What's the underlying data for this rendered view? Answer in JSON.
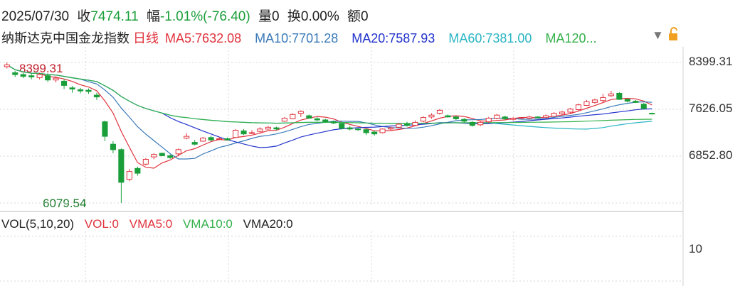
{
  "header": {
    "date": "2025/07/30",
    "close_label": "收",
    "close_value": "7474.11",
    "change_label": "幅",
    "change_value": "-1.01%(-76.40)",
    "volume_label": "量",
    "volume_value": "0",
    "turnover_label": "换",
    "turnover_value": "0.00%",
    "amount_label": "额",
    "amount_value": "0"
  },
  "ma_line": {
    "index_name": "纳斯达克中国金龙指数",
    "period": "日线",
    "ma5": "MA5:7632.08",
    "ma10": "MA10:7701.28",
    "ma20": "MA20:7587.93",
    "ma60": "MA60:7381.00",
    "ma120": "MA120..."
  },
  "vol_line": {
    "title": "VOL(5,10,20)",
    "vol": "VOL:0",
    "vma5": "VMA5:0",
    "vma10": "VMA10:0",
    "vma20": "VMA20:0"
  },
  "icons": {
    "dropdown": "triangle-down-icon",
    "lock": "unlock-icon"
  },
  "colors": {
    "up": "#e0323c",
    "down": "#1a9e3a",
    "ma5": "#e0323c",
    "ma10": "#3a7ab8",
    "ma20": "#2233cc",
    "ma60": "#2bb5c4",
    "ma120": "#34b04a",
    "grid": "#d7d7d7"
  },
  "chart_data": {
    "type": "candlestick",
    "y_ticks": [
      "8399.31",
      "7626.05",
      "6852.80"
    ],
    "ylim": [
      6079.54,
      8399.31
    ],
    "annotations": {
      "high_label": "8399.31",
      "low_label": "6079.54"
    },
    "volume_tick": "10",
    "candles": [
      [
        8330,
        8360,
        8300,
        8399.31
      ],
      [
        8230,
        8200,
        8160,
        8260
      ],
      [
        8200,
        8170,
        8140,
        8230
      ],
      [
        8180,
        8160,
        8120,
        8210
      ],
      [
        8150,
        8200,
        8120,
        8230
      ],
      [
        8180,
        8110,
        8080,
        8220
      ],
      [
        8110,
        8140,
        8070,
        8170
      ],
      [
        8090,
        8020,
        7960,
        8130
      ],
      [
        7980,
        7960,
        7900,
        8010
      ],
      [
        7950,
        7930,
        7890,
        7980
      ],
      [
        7940,
        7920,
        7880,
        7970
      ],
      [
        7860,
        7830,
        7780,
        7900
      ],
      [
        7420,
        7180,
        7100,
        7440
      ],
      [
        7050,
        6960,
        6900,
        7100
      ],
      [
        6960,
        6420,
        6079.54,
        6980
      ],
      [
        6470,
        6600,
        6440,
        6640
      ],
      [
        6650,
        6570,
        6530,
        6680
      ],
      [
        6720,
        6800,
        6700,
        6820
      ],
      [
        6840,
        6880,
        6800,
        6900
      ],
      [
        6900,
        6860,
        6850,
        6910
      ],
      [
        6860,
        6830,
        6810,
        6880
      ],
      [
        6890,
        6960,
        6850,
        6980
      ],
      [
        7150,
        7180,
        7130,
        7230
      ],
      [
        7080,
        7050,
        7030,
        7120
      ],
      [
        7100,
        7150,
        7090,
        7170
      ],
      [
        7160,
        7120,
        7100,
        7190
      ],
      [
        7130,
        7140,
        7120,
        7170
      ],
      [
        7140,
        7120,
        7110,
        7160
      ],
      [
        7160,
        7280,
        7150,
        7300
      ],
      [
        7270,
        7220,
        7200,
        7300
      ],
      [
        7230,
        7240,
        7220,
        7280
      ],
      [
        7260,
        7300,
        7240,
        7330
      ],
      [
        7300,
        7330,
        7290,
        7350
      ],
      [
        7320,
        7300,
        7280,
        7340
      ],
      [
        7430,
        7480,
        7420,
        7500
      ],
      [
        7470,
        7540,
        7460,
        7560
      ],
      [
        7560,
        7590,
        7500,
        7610
      ],
      [
        7520,
        7480,
        7470,
        7540
      ],
      [
        7470,
        7450,
        7430,
        7500
      ],
      [
        7450,
        7420,
        7400,
        7470
      ],
      [
        7420,
        7400,
        7380,
        7440
      ],
      [
        7390,
        7310,
        7290,
        7400
      ],
      [
        7320,
        7300,
        7280,
        7350
      ],
      [
        7300,
        7290,
        7270,
        7320
      ],
      [
        7290,
        7240,
        7200,
        7310
      ],
      [
        7250,
        7220,
        7190,
        7270
      ],
      [
        7240,
        7300,
        7230,
        7310
      ],
      [
        7300,
        7320,
        7280,
        7340
      ],
      [
        7330,
        7380,
        7320,
        7400
      ],
      [
        7380,
        7360,
        7340,
        7420
      ],
      [
        7360,
        7410,
        7350,
        7440
      ],
      [
        7430,
        7490,
        7410,
        7510
      ],
      [
        7500,
        7530,
        7470,
        7560
      ],
      [
        7560,
        7610,
        7540,
        7630
      ],
      [
        7520,
        7500,
        7490,
        7540
      ],
      [
        7500,
        7470,
        7450,
        7520
      ],
      [
        7460,
        7430,
        7410,
        7480
      ],
      [
        7410,
        7360,
        7340,
        7430
      ],
      [
        7370,
        7410,
        7350,
        7430
      ],
      [
        7420,
        7480,
        7400,
        7500
      ],
      [
        7480,
        7530,
        7460,
        7550
      ],
      [
        7500,
        7470,
        7450,
        7520
      ],
      [
        7460,
        7480,
        7440,
        7500
      ],
      [
        7480,
        7490,
        7470,
        7500
      ],
      [
        7480,
        7500,
        7460,
        7520
      ],
      [
        7500,
        7490,
        7480,
        7510
      ],
      [
        7490,
        7520,
        7480,
        7540
      ],
      [
        7510,
        7560,
        7500,
        7580
      ],
      [
        7550,
        7580,
        7530,
        7600
      ],
      [
        7580,
        7630,
        7560,
        7650
      ],
      [
        7620,
        7700,
        7600,
        7720
      ],
      [
        7690,
        7750,
        7680,
        7780
      ],
      [
        7740,
        7780,
        7720,
        7800
      ],
      [
        7770,
        7820,
        7740,
        7880
      ],
      [
        7850,
        7880,
        7830,
        7930
      ],
      [
        7890,
        7790,
        7780,
        7910
      ],
      [
        7790,
        7760,
        7740,
        7800
      ],
      [
        7760,
        7740,
        7730,
        7780
      ],
      [
        7710,
        7640,
        7620,
        7730
      ],
      [
        7560,
        7550,
        7540,
        7570
      ]
    ]
  }
}
